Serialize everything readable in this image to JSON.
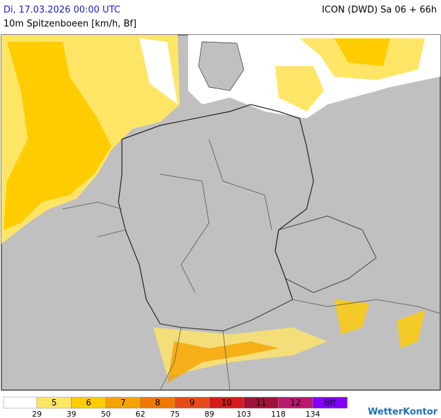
{
  "header": {
    "valid_time": "Di, 17.03.2026 00:00 UTC",
    "model_run": "ICON (DWD) Sa 06 + 66h",
    "parameter": "10m Spitzenboeen [km/h, Bf]"
  },
  "legend": {
    "classes": [
      {
        "label": null,
        "color": "#ffffff"
      },
      {
        "label": "5",
        "color": "#ffe566"
      },
      {
        "label": "6",
        "color": "#ffcc00"
      },
      {
        "label": "7",
        "color": "#f5a300"
      },
      {
        "label": "8",
        "color": "#f07800"
      },
      {
        "label": "9",
        "color": "#e64a19"
      },
      {
        "label": "10",
        "color": "#d71a1a"
      },
      {
        "label": "11",
        "color": "#a0123a"
      },
      {
        "label": "12",
        "color": "#b8186e"
      },
      {
        "label": "Bft",
        "color": "#8000ff"
      }
    ],
    "thresholds": [
      "29",
      "39",
      "50",
      "62",
      "75",
      "89",
      "103",
      "118",
      "134"
    ]
  },
  "logo": "WetterKontor"
}
